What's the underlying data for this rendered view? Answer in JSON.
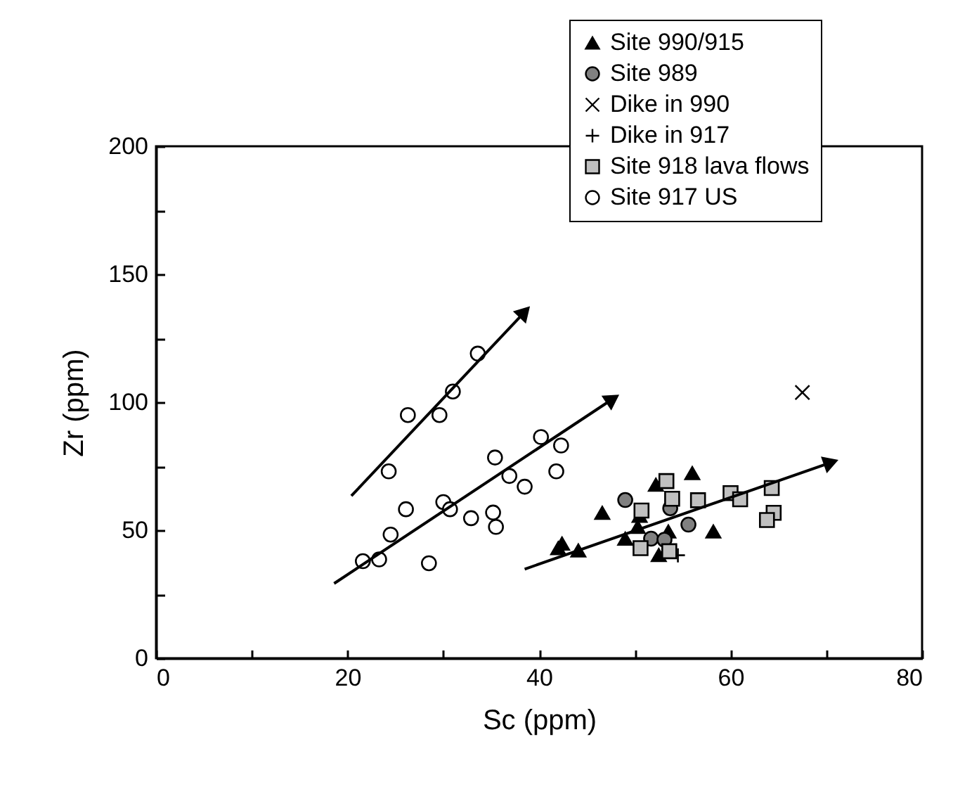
{
  "chart_data": {
    "type": "scatter",
    "xlabel": "Sc (ppm)",
    "ylabel": "Zr (ppm)",
    "xlim": [
      0,
      80
    ],
    "ylim": [
      0,
      200
    ],
    "xticks": [
      0,
      {
        "value": 10,
        "label": null
      },
      20,
      {
        "value": 30,
        "label": null
      },
      40,
      {
        "value": 50,
        "label": null
      },
      60,
      {
        "value": 70,
        "label": null
      },
      80
    ],
    "yticks": [
      0,
      {
        "value": 25,
        "label": null
      },
      50,
      {
        "value": 75,
        "label": null
      },
      100,
      {
        "value": 125,
        "label": null
      },
      150,
      {
        "value": 175,
        "label": null
      },
      200
    ],
    "grid": false,
    "legend": "top right",
    "series": [
      {
        "name": "Site 990/915",
        "color": "#000000",
        "marker": "triangle",
        "x": [
          42.4,
          42.0,
          44.1,
          46.6,
          56.0,
          58.2,
          52.2,
          50.5,
          49.0,
          53.5,
          52.5,
          50.3
        ],
        "values": [
          44.8,
          43,
          42.1,
          56.8,
          72.3,
          49.5,
          67.8,
          55.6,
          46.7,
          49.5,
          40.3,
          51.3
        ]
      },
      {
        "name": "Site 989",
        "color": "#808080",
        "marker": "circle",
        "x": [
          49.0,
          53.7,
          55.6,
          51.7,
          53.1
        ],
        "values": [
          61.8,
          58.6,
          52.2,
          46.7,
          46.3
        ]
      },
      {
        "name": "Dike in 990",
        "color": "#000000",
        "marker": "cross",
        "x": [
          67.5
        ],
        "values": [
          103.8
        ]
      },
      {
        "name": "Dike in 917",
        "color": "#000000",
        "marker": "plus",
        "x": [
          54.5
        ],
        "values": [
          40.2
        ]
      },
      {
        "name": "Site 918 lava flows",
        "color": "#c0c0c0",
        "marker": "square",
        "x": [
          53.3,
          53.9,
          56.6,
          50.7,
          60.0,
          61.0,
          64.3,
          64.5,
          63.8,
          50.6,
          53.6
        ],
        "values": [
          69.2,
          62.3,
          61.7,
          57.7,
          64.5,
          62.1,
          66.5,
          56.8,
          54,
          43,
          41.8
        ]
      },
      {
        "name": "Site 917 US",
        "color": "#ffffff",
        "marker": "circle",
        "x": [
          33.6,
          31.0,
          26.3,
          29.6,
          24.3,
          40.2,
          42.3,
          35.4,
          36.9,
          41.8,
          38.5,
          26.1,
          30.0,
          30.7,
          32.9,
          35.2,
          35.5,
          24.5,
          21.6,
          23.3,
          28.5
        ],
        "values": [
          119,
          104.2,
          95,
          95,
          73,
          86.4,
          83.1,
          78.4,
          71.2,
          73,
          67,
          58.2,
          61,
          58.2,
          54.7,
          56.9,
          51.3,
          48.3,
          37.9,
          38.6,
          37.1
        ]
      },
      {
        "type": "line",
        "color": "#000000",
        "x": [
          20.4,
          38.5
        ],
        "values": [
          63.4,
          135.3
        ]
      },
      {
        "type": "line",
        "color": "#000000",
        "x": [
          18.6,
          47.7
        ],
        "values": [
          29.2,
          101.3
        ]
      },
      {
        "type": "line",
        "color": "#000000",
        "x": [
          38.5,
          70.5
        ],
        "values": [
          34.8,
          76.5
        ]
      }
    ]
  }
}
